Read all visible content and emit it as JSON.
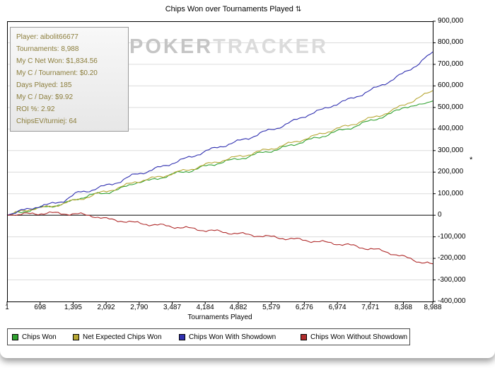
{
  "window": {
    "title": "Chips Won over Tournaments Played",
    "title_icon": "⇅"
  },
  "watermark": {
    "bold": "POKER",
    "light": "TRACKER"
  },
  "stats_box": {
    "text_color": "#8b7d3b",
    "lines": [
      "Player: aibolit66677",
      "Tournaments: 8,988",
      "My C Net Won: $1,834.56",
      "My C / Tournament: $0.20",
      "Days Played: 185",
      "My C / Day: $9.92",
      "ROI %: 2.92",
      "ChipsEV/turniej: 64"
    ]
  },
  "axes": {
    "x_title": "Tournaments Played",
    "y_symbol": "*"
  },
  "chart_data": {
    "type": "line",
    "title": "Chips Won over Tournaments Played",
    "xlabel": "Tournaments Played",
    "ylabel": "",
    "xlim": [
      1,
      8988
    ],
    "ylim": [
      -400000,
      900000
    ],
    "grid": "horizontal",
    "legend_position": "bottom",
    "x_ticks": [
      1,
      698,
      1395,
      2092,
      2790,
      3487,
      4184,
      4882,
      5579,
      6276,
      6974,
      7671,
      8368,
      8988
    ],
    "x_tick_labels": [
      "1",
      "698",
      "1,395",
      "2,092",
      "2,790",
      "3,487",
      "4,184",
      "4,882",
      "5,579",
      "6,276",
      "6,974",
      "7,671",
      "8,368",
      "8,988"
    ],
    "y_ticks": [
      900000,
      800000,
      700000,
      600000,
      500000,
      400000,
      300000,
      200000,
      100000,
      0,
      -100000,
      -200000,
      -300000,
      -400000
    ],
    "y_tick_labels": [
      "900,000",
      "800,000",
      "700,000",
      "600,000",
      "500,000",
      "400,000",
      "300,000",
      "200,000",
      "100,000",
      "0",
      "-100,000",
      "-200,000",
      "-300,000",
      "-400,000"
    ],
    "x": [
      1,
      300,
      600,
      900,
      1200,
      1500,
      1800,
      2100,
      2400,
      2700,
      3000,
      3300,
      3600,
      3900,
      4200,
      4500,
      4800,
      5100,
      5400,
      5700,
      6000,
      6300,
      6600,
      6900,
      7200,
      7500,
      7800,
      8100,
      8400,
      8700,
      8988
    ],
    "series": [
      {
        "name": "Chips Won",
        "color": "#2fa12f",
        "values": [
          0,
          15000,
          30000,
          42000,
          52000,
          78000,
          95000,
          105000,
          122000,
          152000,
          160000,
          178000,
          196000,
          208000,
          228000,
          244000,
          258000,
          272000,
          292000,
          304000,
          325000,
          345000,
          362000,
          385000,
          402000,
          425000,
          448000,
          470000,
          505000,
          508000,
          530000
        ]
      },
      {
        "name": "Net Expected Chips Won",
        "color": "#b7a734",
        "values": [
          0,
          18000,
          33000,
          38000,
          56000,
          72000,
          92000,
          112000,
          130000,
          155000,
          168000,
          182000,
          200000,
          215000,
          235000,
          252000,
          268000,
          282000,
          300000,
          315000,
          335000,
          355000,
          375000,
          398000,
          415000,
          438000,
          458000,
          482000,
          515000,
          545000,
          578000
        ]
      },
      {
        "name": "Chips Won With Showdown",
        "color": "#3030b0",
        "values": [
          0,
          20000,
          38000,
          50000,
          68000,
          105000,
          118000,
          138000,
          158000,
          190000,
          205000,
          228000,
          250000,
          272000,
          298000,
          318000,
          338000,
          358000,
          385000,
          405000,
          432000,
          462000,
          485000,
          512000,
          535000,
          562000,
          592000,
          625000,
          662000,
          705000,
          758000
        ]
      },
      {
        "name": "Chips Won Without Showdown",
        "color": "#b02c2c",
        "values": [
          0,
          4000,
          8000,
          10000,
          8000,
          5000,
          -2000,
          -18000,
          -25000,
          -35000,
          -42000,
          -48000,
          -55000,
          -62000,
          -70000,
          -76000,
          -84000,
          -90000,
          -97000,
          -103000,
          -110000,
          -116000,
          -123000,
          -130000,
          -138000,
          -150000,
          -160000,
          -175000,
          -195000,
          -215000,
          -225000
        ]
      }
    ]
  }
}
